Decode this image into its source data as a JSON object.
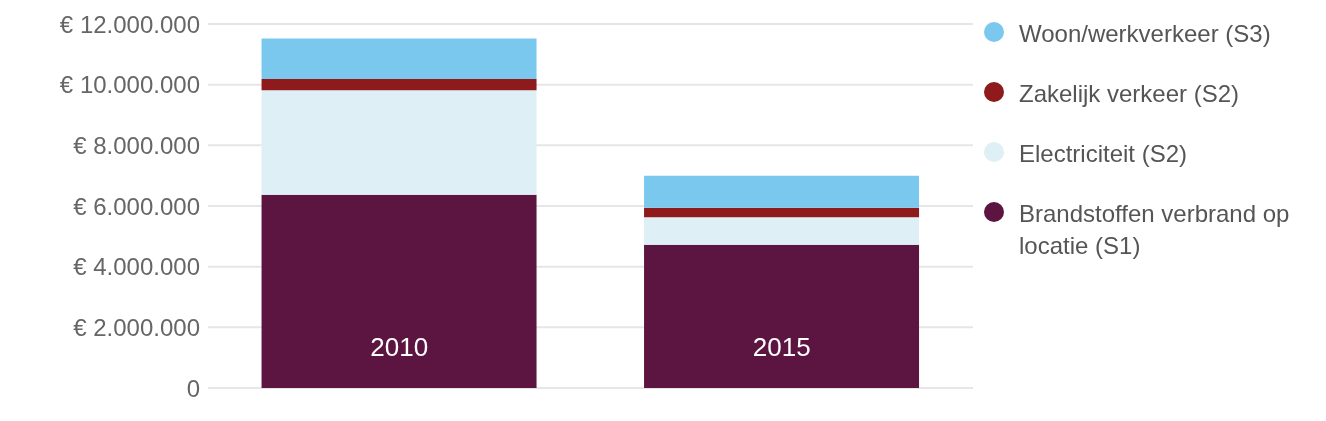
{
  "chart_data": {
    "type": "bar",
    "stacked": true,
    "categories": [
      "2010",
      "2015"
    ],
    "series": [
      {
        "name": "Brandstoffen verbrand op locatie (S1)",
        "color": "#5c1541",
        "values": [
          6370000,
          4720000
        ]
      },
      {
        "name": "Electriciteit (S2)",
        "color": "#dfeff6",
        "values": [
          3450000,
          910000
        ]
      },
      {
        "name": "Zakelijk verkeer (S2)",
        "color": "#8e1a1c",
        "values": [
          370000,
          310000
        ]
      },
      {
        "name": "Woon/werkverkeer (S3)",
        "color": "#7bc8ef",
        "values": [
          1330000,
          1060000
        ]
      }
    ],
    "ylim": [
      0,
      12000000
    ],
    "yticks": [
      {
        "value": 0,
        "label": "0"
      },
      {
        "value": 2000000,
        "label": "€ 2.000.000"
      },
      {
        "value": 4000000,
        "label": "€ 4.000.000"
      },
      {
        "value": 6000000,
        "label": "€ 6.000.000"
      },
      {
        "value": 8000000,
        "label": "€ 8.000.000"
      },
      {
        "value": 10000000,
        "label": "€ 10.000.000"
      },
      {
        "value": 12000000,
        "label": "€ 12.000.000"
      }
    ],
    "grid": "y",
    "legend": "right"
  }
}
